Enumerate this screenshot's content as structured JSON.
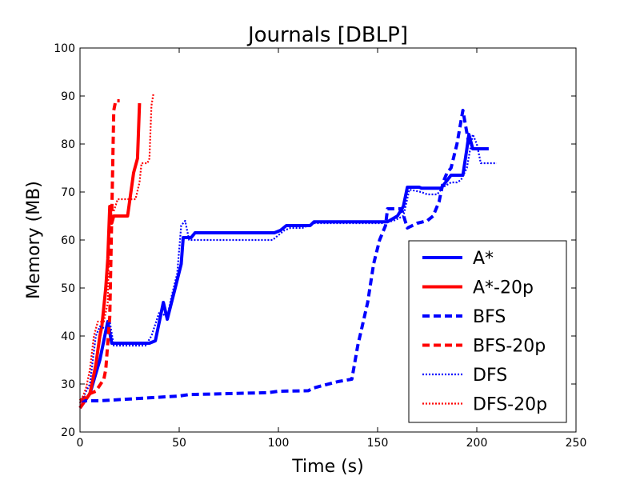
{
  "chart_data": {
    "type": "line",
    "title": "Journals [DBLP]",
    "xlabel": "Time (s)",
    "ylabel": "Memory (MB)",
    "xlim": [
      0,
      250
    ],
    "ylim": [
      20,
      100
    ],
    "xticks": [
      "0",
      "50",
      "100",
      "150",
      "200",
      "250"
    ],
    "yticks": [
      "20",
      "30",
      "40",
      "50",
      "60",
      "70",
      "80",
      "90",
      "100"
    ],
    "grid": false,
    "legend_position": "lower-right",
    "series": [
      {
        "name": "A*",
        "color": "#0000ff",
        "style": "solid",
        "points": [
          [
            0,
            25
          ],
          [
            5,
            28
          ],
          [
            10,
            35
          ],
          [
            14,
            43
          ],
          [
            16,
            38.5
          ],
          [
            35,
            38.5
          ],
          [
            38,
            39
          ],
          [
            42,
            47
          ],
          [
            44,
            43.5
          ],
          [
            48,
            50
          ],
          [
            51,
            55
          ],
          [
            52,
            60.5
          ],
          [
            56,
            60.5
          ],
          [
            58,
            61.5
          ],
          [
            98,
            61.5
          ],
          [
            101,
            62
          ],
          [
            104,
            63
          ],
          [
            116,
            63
          ],
          [
            118,
            63.8
          ],
          [
            155,
            63.8
          ],
          [
            160,
            65
          ],
          [
            163,
            67
          ],
          [
            165,
            71
          ],
          [
            171,
            71
          ],
          [
            172,
            70.8
          ],
          [
            182,
            70.8
          ],
          [
            187,
            73.5
          ],
          [
            193,
            73.5
          ],
          [
            195,
            79
          ],
          [
            196,
            82
          ],
          [
            198,
            79
          ],
          [
            206,
            79
          ]
        ]
      },
      {
        "name": "A*-20p",
        "color": "#ff0000",
        "style": "solid",
        "points": [
          [
            0,
            25
          ],
          [
            5,
            28
          ],
          [
            8,
            34
          ],
          [
            10,
            40
          ],
          [
            11,
            42
          ],
          [
            13,
            50
          ],
          [
            14,
            56
          ],
          [
            15,
            67
          ],
          [
            16,
            63.5
          ],
          [
            17,
            65
          ],
          [
            24,
            65
          ],
          [
            27,
            74
          ],
          [
            29,
            77
          ],
          [
            30,
            88.5
          ]
        ]
      },
      {
        "name": "BFS",
        "color": "#0000ff",
        "style": "dashed",
        "points": [
          [
            0,
            26.5
          ],
          [
            10,
            26.5
          ],
          [
            30,
            27
          ],
          [
            50,
            27.5
          ],
          [
            55,
            27.8
          ],
          [
            75,
            28
          ],
          [
            95,
            28.2
          ],
          [
            100,
            28.5
          ],
          [
            115,
            28.6
          ],
          [
            118,
            29.2
          ],
          [
            130,
            30.5
          ],
          [
            137,
            31
          ],
          [
            140,
            38
          ],
          [
            145,
            47
          ],
          [
            148,
            55
          ],
          [
            151,
            60
          ],
          [
            154,
            63
          ],
          [
            155,
            66.5
          ],
          [
            162,
            66.5
          ],
          [
            165,
            62.5
          ],
          [
            170,
            63.5
          ],
          [
            175,
            64
          ],
          [
            178,
            65
          ],
          [
            181,
            68
          ],
          [
            183,
            72
          ],
          [
            185,
            74
          ],
          [
            187,
            75
          ],
          [
            190,
            80
          ],
          [
            193,
            87
          ],
          [
            196,
            80
          ],
          [
            198,
            79
          ],
          [
            200,
            79
          ]
        ]
      },
      {
        "name": "BFS-20p",
        "color": "#ff0000",
        "style": "dashed",
        "points": [
          [
            0,
            26.5
          ],
          [
            5,
            28
          ],
          [
            8,
            28.5
          ],
          [
            12,
            31
          ],
          [
            13,
            33
          ],
          [
            15,
            44
          ],
          [
            16,
            65
          ],
          [
            17,
            87
          ],
          [
            18,
            89
          ],
          [
            20,
            89
          ]
        ]
      },
      {
        "name": "DFS",
        "color": "#0000ff",
        "style": "dotted",
        "points": [
          [
            0,
            26
          ],
          [
            5,
            30
          ],
          [
            8,
            40
          ],
          [
            10,
            42
          ],
          [
            13,
            41.5
          ],
          [
            15,
            43
          ],
          [
            17,
            38
          ],
          [
            33,
            38
          ],
          [
            36,
            40
          ],
          [
            40,
            45
          ],
          [
            44,
            44
          ],
          [
            46,
            48
          ],
          [
            49,
            53
          ],
          [
            50,
            58
          ],
          [
            51,
            63
          ],
          [
            53,
            64
          ],
          [
            55,
            60
          ],
          [
            97,
            60
          ],
          [
            100,
            61
          ],
          [
            103,
            62
          ],
          [
            106,
            62.5
          ],
          [
            112,
            62.5
          ],
          [
            118,
            63.5
          ],
          [
            152,
            63.5
          ],
          [
            158,
            64
          ],
          [
            163,
            65
          ],
          [
            166,
            70.5
          ],
          [
            172,
            70
          ],
          [
            175,
            69.5
          ],
          [
            180,
            69.5
          ],
          [
            183,
            71
          ],
          [
            187,
            72
          ],
          [
            190,
            72
          ],
          [
            192,
            72.5
          ],
          [
            195,
            75
          ],
          [
            198,
            82
          ],
          [
            200,
            80
          ],
          [
            202,
            76
          ],
          [
            210,
            76
          ]
        ]
      },
      {
        "name": "DFS-20p",
        "color": "#ff0000",
        "style": "dotted",
        "points": [
          [
            0,
            26
          ],
          [
            3,
            29
          ],
          [
            5,
            33
          ],
          [
            7,
            40
          ],
          [
            9,
            43
          ],
          [
            12,
            43
          ],
          [
            14,
            47
          ],
          [
            15,
            66
          ],
          [
            17,
            66
          ],
          [
            19,
            68.5
          ],
          [
            28,
            68.5
          ],
          [
            30,
            72
          ],
          [
            31,
            76
          ],
          [
            34,
            76
          ],
          [
            35,
            77
          ],
          [
            36,
            88
          ],
          [
            37,
            90.5
          ]
        ]
      }
    ]
  }
}
